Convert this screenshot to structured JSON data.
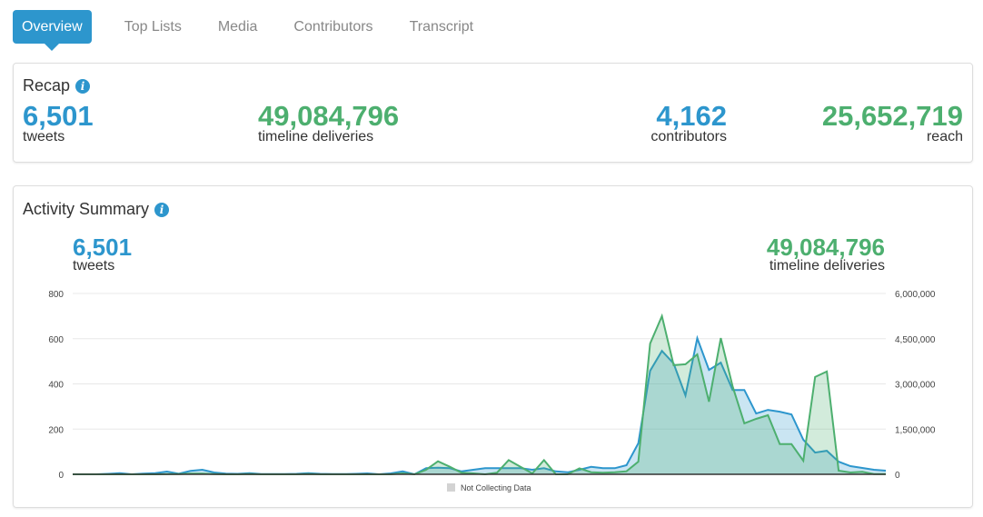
{
  "tabs": [
    {
      "label": "Overview",
      "active": true
    },
    {
      "label": "Top Lists"
    },
    {
      "label": "Media"
    },
    {
      "label": "Contributors"
    },
    {
      "label": "Transcript"
    }
  ],
  "recap": {
    "title": "Recap",
    "info_icon": "info-icon",
    "tweets": {
      "value": "6,501",
      "label": "tweets"
    },
    "deliveries": {
      "value": "49,084,796",
      "label": "timeline deliveries"
    },
    "contributors": {
      "value": "4,162",
      "label": "contributors"
    },
    "reach": {
      "value": "25,652,719",
      "label": "reach"
    }
  },
  "activity": {
    "title": "Activity Summary",
    "info_icon": "info-icon",
    "tweets": {
      "value": "6,501",
      "label": "tweets"
    },
    "deliveries": {
      "value": "49,084,796",
      "label": "timeline deliveries"
    }
  },
  "colors": {
    "tweets": "#2d96cd",
    "deliveries": "#4daf6f",
    "not_collecting": "#d3d3d3"
  },
  "chart_data": {
    "type": "area",
    "grid": true,
    "legend": "bottom-center",
    "legend_entries": [
      "Not Collecting Data"
    ],
    "left_axis": {
      "ylim": [
        0,
        800
      ],
      "ticks": [
        "0",
        "200",
        "400",
        "600",
        "800"
      ]
    },
    "right_axis": {
      "ylim": [
        0,
        6000000
      ],
      "ticks": [
        "0",
        "1,500,000",
        "3,000,000",
        "4,500,000",
        "6,000,000"
      ]
    },
    "series": [
      {
        "key": "tweets",
        "axis": "left",
        "values": [
          0,
          0,
          0,
          2,
          5,
          0,
          3,
          5,
          12,
          3,
          15,
          20,
          8,
          3,
          2,
          5,
          1,
          1,
          1,
          2,
          5,
          2,
          1,
          1,
          2,
          4,
          0,
          4,
          13,
          0,
          27,
          29,
          27,
          13,
          20,
          27,
          27,
          27,
          27,
          20,
          27,
          13,
          9,
          20,
          33,
          27,
          27,
          40,
          137,
          458,
          546,
          490,
          349,
          602,
          462,
          494,
          373,
          373,
          269,
          285,
          277,
          265,
          153,
          96,
          104,
          56,
          36,
          28,
          20,
          16
        ]
      },
      {
        "key": "deliveries",
        "axis": "right",
        "values": [
          0,
          0,
          0,
          0,
          0,
          0,
          0,
          0,
          5000,
          10000,
          20000,
          20000,
          10000,
          0,
          0,
          5000,
          0,
          0,
          0,
          0,
          5000,
          0,
          0,
          0,
          0,
          0,
          0,
          0,
          30000,
          0,
          150000,
          430000,
          250000,
          50000,
          30000,
          0,
          50000,
          470000,
          250000,
          30000,
          470000,
          0,
          0,
          200000,
          70000,
          50000,
          70000,
          100000,
          420000,
          4340000,
          5250000,
          3620000,
          3650000,
          3980000,
          2410000,
          4520000,
          2920000,
          1690000,
          1840000,
          1960000,
          1000000,
          1000000,
          450000,
          3230000,
          3410000,
          120000,
          60000,
          80000,
          10000,
          10000
        ]
      }
    ]
  }
}
